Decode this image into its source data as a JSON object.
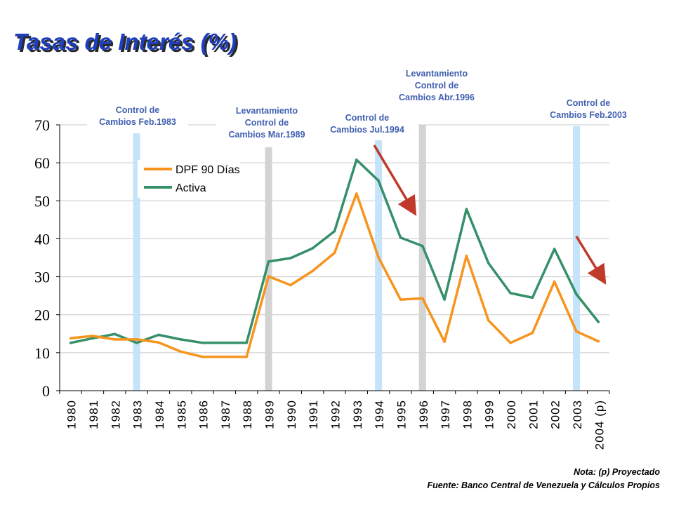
{
  "chart_data": {
    "type": "line",
    "title": "Tasas de Interés (%)",
    "categories": [
      "1980",
      "1981",
      "1982",
      "1983",
      "1984",
      "1985",
      "1986",
      "1987",
      "1988",
      "1989",
      "1990",
      "1991",
      "1992",
      "1993",
      "1994",
      "1995",
      "1996",
      "1997",
      "1998",
      "1999",
      "2000",
      "2001",
      "2002",
      "2003",
      "2004 (p)"
    ],
    "series": [
      {
        "name": "DPF 90 Días",
        "color": "#f7941d",
        "values": [
          13.8,
          14.4,
          13.5,
          13.5,
          12.7,
          10.3,
          8.9,
          8.9,
          8.9,
          30.1,
          27.8,
          31.5,
          36.3,
          51.9,
          35.1,
          24.0,
          24.3,
          12.9,
          35.5,
          18.5,
          12.6,
          15.2,
          28.7,
          15.6,
          13.0
        ]
      },
      {
        "name": "Activa",
        "color": "#35906a",
        "values": [
          12.6,
          13.8,
          14.9,
          12.6,
          14.7,
          13.5,
          12.6,
          12.6,
          12.6,
          34.0,
          34.9,
          37.5,
          42.0,
          60.8,
          55.3,
          40.3,
          38.1,
          24.0,
          47.8,
          33.6,
          25.7,
          24.5,
          37.3,
          25.4,
          18.1
        ]
      }
    ],
    "ylim": [
      0,
      70
    ],
    "yticks": [
      0,
      10,
      20,
      30,
      40,
      50,
      60,
      70
    ],
    "grid": true,
    "legend": "top-left",
    "highlight_bands": [
      {
        "year": "1983",
        "color": "#c5e3f9"
      },
      {
        "year": "1989",
        "color": "#d3d3d3"
      },
      {
        "year": "1994",
        "color": "#c5e3f9"
      },
      {
        "year": "1996",
        "color": "#d3d3d3"
      },
      {
        "year": "2003",
        "color": "#c5e3f9"
      }
    ],
    "annotations": [
      {
        "year": "1983",
        "lines": [
          "Control de",
          "Cambios Feb.1983"
        ]
      },
      {
        "year": "1989",
        "lines": [
          "Levantamiento",
          "Control de",
          "Cambios Mar.1989"
        ]
      },
      {
        "year": "1994",
        "lines": [
          "Control de",
          "Cambios Jul.1994"
        ]
      },
      {
        "year": "1996",
        "lines": [
          "Levantamiento",
          "Control de",
          "Cambios Abr.1996"
        ]
      },
      {
        "year": "2003",
        "lines": [
          "Control de",
          "Cambios Feb.2003"
        ]
      }
    ],
    "arrow_color": "#c0392b"
  },
  "footer": {
    "note": "Nota: (p) Proyectado",
    "source": "Fuente: Banco Central de Venezuela y Cálculos Propios"
  }
}
